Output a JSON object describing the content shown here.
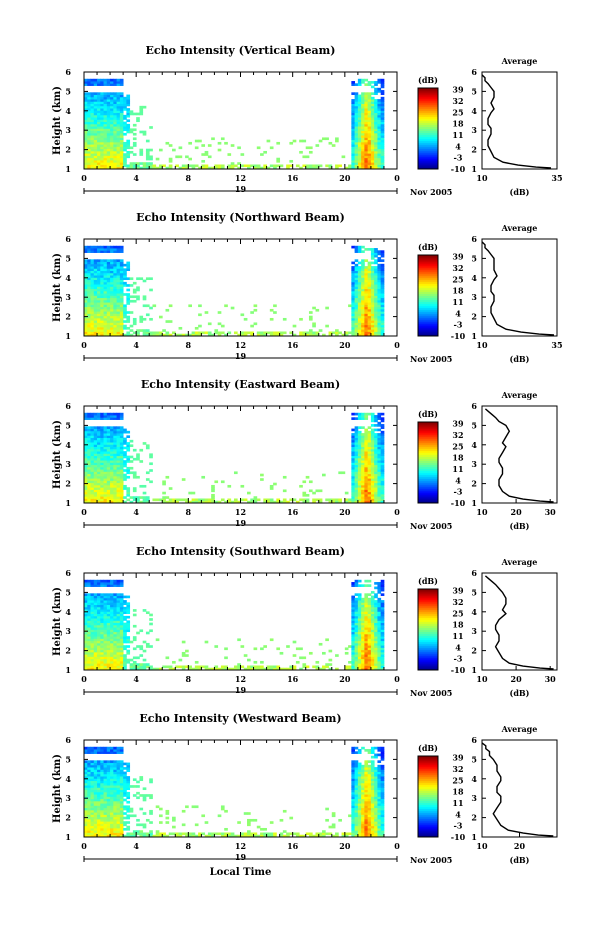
{
  "figure": {
    "xlabel_bottom": "Local Time",
    "date_label": "Nov 2005",
    "day_label": "19"
  },
  "chart_data": [
    {
      "type": "heatmap",
      "title": "Echo Intensity (Vertical Beam)",
      "ylabel": "Height (km)",
      "ylim": [
        1,
        6
      ],
      "xlim": [
        0,
        24
      ],
      "x_ticks": [
        "0",
        "4",
        "8",
        "12",
        "16",
        "20",
        "0"
      ],
      "y_ticks": [
        "1",
        "2",
        "3",
        "4",
        "5",
        "6"
      ],
      "colorbar": {
        "unit": "(dB)",
        "range": [
          -10,
          40
        ],
        "ticks": [
          "39",
          "32",
          "25",
          "18",
          "11",
          "4",
          "-3",
          "-10"
        ]
      },
      "profile": {
        "title": "Average",
        "xlabel": "(dB)",
        "x_ticks": [
          "10",
          "35"
        ],
        "xlim": [
          10,
          35
        ],
        "y_ticks": [
          "1",
          "2",
          "3",
          "4",
          "5",
          "6"
        ],
        "points": [
          [
            33,
            1.05
          ],
          [
            28,
            1.1
          ],
          [
            22,
            1.2
          ],
          [
            17,
            1.35
          ],
          [
            14,
            1.6
          ],
          [
            13,
            1.9
          ],
          [
            12,
            2.2
          ],
          [
            12,
            2.5
          ],
          [
            13,
            2.8
          ],
          [
            13,
            3.1
          ],
          [
            12,
            3.3
          ],
          [
            12,
            3.6
          ],
          [
            13,
            3.9
          ],
          [
            14,
            4.1
          ],
          [
            13,
            4.4
          ],
          [
            14,
            4.7
          ],
          [
            14,
            5.0
          ],
          [
            13,
            5.2
          ],
          [
            12,
            5.4
          ],
          [
            11,
            5.55
          ],
          [
            11,
            5.7
          ],
          [
            10,
            5.85
          ]
        ]
      }
    },
    {
      "type": "heatmap",
      "title": "Echo Intensity (Northward Beam)",
      "ylabel": "Height (km)",
      "ylim": [
        1,
        6
      ],
      "xlim": [
        0,
        24
      ],
      "x_ticks": [
        "0",
        "4",
        "8",
        "12",
        "16",
        "20",
        "0"
      ],
      "y_ticks": [
        "1",
        "2",
        "3",
        "4",
        "5",
        "6"
      ],
      "colorbar": {
        "unit": "(dB)",
        "range": [
          -10,
          40
        ],
        "ticks": [
          "39",
          "32",
          "25",
          "18",
          "11",
          "4",
          "-3",
          "-10"
        ]
      },
      "profile": {
        "title": "Average",
        "xlabel": "(dB)",
        "x_ticks": [
          "10",
          "35"
        ],
        "xlim": [
          10,
          35
        ],
        "y_ticks": [
          "1",
          "2",
          "3",
          "4",
          "5",
          "6"
        ],
        "points": [
          [
            34,
            1.05
          ],
          [
            29,
            1.1
          ],
          [
            23,
            1.2
          ],
          [
            18,
            1.35
          ],
          [
            15,
            1.6
          ],
          [
            14,
            1.9
          ],
          [
            13,
            2.2
          ],
          [
            13,
            2.5
          ],
          [
            14,
            2.8
          ],
          [
            14,
            3.1
          ],
          [
            13,
            3.3
          ],
          [
            13,
            3.6
          ],
          [
            14,
            3.9
          ],
          [
            15,
            4.1
          ],
          [
            14,
            4.4
          ],
          [
            14,
            4.7
          ],
          [
            14,
            5.0
          ],
          [
            13,
            5.2
          ],
          [
            12,
            5.4
          ],
          [
            11,
            5.55
          ],
          [
            11,
            5.7
          ],
          [
            10,
            5.85
          ]
        ]
      }
    },
    {
      "type": "heatmap",
      "title": "Echo Intensity (Eastward Beam)",
      "ylabel": "Height (km)",
      "ylim": [
        1,
        6
      ],
      "xlim": [
        0,
        24
      ],
      "x_ticks": [
        "0",
        "4",
        "8",
        "12",
        "16",
        "20",
        "0"
      ],
      "y_ticks": [
        "1",
        "2",
        "3",
        "4",
        "5",
        "6"
      ],
      "colorbar": {
        "unit": "(dB)",
        "range": [
          -10,
          40
        ],
        "ticks": [
          "39",
          "32",
          "25",
          "18",
          "11",
          "4",
          "-3",
          "-10"
        ]
      },
      "profile": {
        "title": "Average",
        "xlabel": "(dB)",
        "x_ticks": [
          "10",
          "20",
          "30"
        ],
        "xlim": [
          10,
          32
        ],
        "y_ticks": [
          "1",
          "2",
          "3",
          "4",
          "5",
          "6"
        ],
        "points": [
          [
            31,
            1.05
          ],
          [
            27,
            1.1
          ],
          [
            22,
            1.2
          ],
          [
            18,
            1.35
          ],
          [
            16,
            1.6
          ],
          [
            15,
            1.9
          ],
          [
            15,
            2.2
          ],
          [
            16,
            2.5
          ],
          [
            16,
            2.8
          ],
          [
            15,
            3.1
          ],
          [
            15,
            3.3
          ],
          [
            16,
            3.6
          ],
          [
            17,
            3.9
          ],
          [
            16,
            4.1
          ],
          [
            17,
            4.4
          ],
          [
            18,
            4.7
          ],
          [
            17,
            5.0
          ],
          [
            15,
            5.2
          ],
          [
            14,
            5.4
          ],
          [
            13,
            5.55
          ],
          [
            12,
            5.7
          ],
          [
            11,
            5.85
          ]
        ]
      }
    },
    {
      "type": "heatmap",
      "title": "Echo Intensity (Southward Beam)",
      "ylabel": "Height (km)",
      "ylim": [
        1,
        6
      ],
      "xlim": [
        0,
        24
      ],
      "x_ticks": [
        "0",
        "4",
        "8",
        "12",
        "16",
        "20",
        "0"
      ],
      "y_ticks": [
        "1",
        "2",
        "3",
        "4",
        "5",
        "6"
      ],
      "colorbar": {
        "unit": "(dB)",
        "range": [
          -10,
          40
        ],
        "ticks": [
          "39",
          "32",
          "25",
          "18",
          "11",
          "4",
          "-3",
          "-10"
        ]
      },
      "profile": {
        "title": "Average",
        "xlabel": "(dB)",
        "x_ticks": [
          "10",
          "20",
          "30"
        ],
        "xlim": [
          10,
          32
        ],
        "y_ticks": [
          "1",
          "2",
          "3",
          "4",
          "5",
          "6"
        ],
        "points": [
          [
            31,
            1.05
          ],
          [
            27,
            1.1
          ],
          [
            22,
            1.2
          ],
          [
            18,
            1.35
          ],
          [
            16,
            1.6
          ],
          [
            15,
            1.9
          ],
          [
            14,
            2.2
          ],
          [
            15,
            2.5
          ],
          [
            15,
            2.8
          ],
          [
            14,
            3.1
          ],
          [
            14,
            3.3
          ],
          [
            15,
            3.6
          ],
          [
            17,
            3.9
          ],
          [
            16,
            4.1
          ],
          [
            17,
            4.4
          ],
          [
            17,
            4.7
          ],
          [
            16,
            5.0
          ],
          [
            15,
            5.2
          ],
          [
            14,
            5.4
          ],
          [
            13,
            5.55
          ],
          [
            12,
            5.7
          ],
          [
            11,
            5.85
          ]
        ]
      }
    },
    {
      "type": "heatmap",
      "title": "Echo Intensity (Westward Beam)",
      "ylabel": "Height (km)",
      "ylim": [
        1,
        6
      ],
      "xlim": [
        0,
        24
      ],
      "x_ticks": [
        "0",
        "4",
        "8",
        "12",
        "16",
        "20",
        "0"
      ],
      "y_ticks": [
        "1",
        "2",
        "3",
        "4",
        "5",
        "6"
      ],
      "colorbar": {
        "unit": "(dB)",
        "range": [
          -10,
          40
        ],
        "ticks": [
          "39",
          "32",
          "25",
          "18",
          "11",
          "4",
          "-3",
          "-10"
        ]
      },
      "profile": {
        "title": "Average",
        "xlabel": "(dB)",
        "x_ticks": [
          "10",
          "20"
        ],
        "xlim": [
          10,
          30
        ],
        "y_ticks": [
          "1",
          "2",
          "3",
          "4",
          "5",
          "6"
        ],
        "points": [
          [
            29,
            1.05
          ],
          [
            25,
            1.1
          ],
          [
            21,
            1.2
          ],
          [
            17,
            1.35
          ],
          [
            15,
            1.6
          ],
          [
            14,
            1.9
          ],
          [
            13,
            2.2
          ],
          [
            14,
            2.5
          ],
          [
            15,
            2.8
          ],
          [
            15,
            3.1
          ],
          [
            14,
            3.3
          ],
          [
            14,
            3.6
          ],
          [
            15,
            3.9
          ],
          [
            15,
            4.1
          ],
          [
            14,
            4.4
          ],
          [
            14,
            4.7
          ],
          [
            13,
            5.0
          ],
          [
            12,
            5.2
          ],
          [
            12,
            5.4
          ],
          [
            11,
            5.55
          ],
          [
            11,
            5.7
          ],
          [
            10,
            5.85
          ]
        ]
      }
    }
  ]
}
